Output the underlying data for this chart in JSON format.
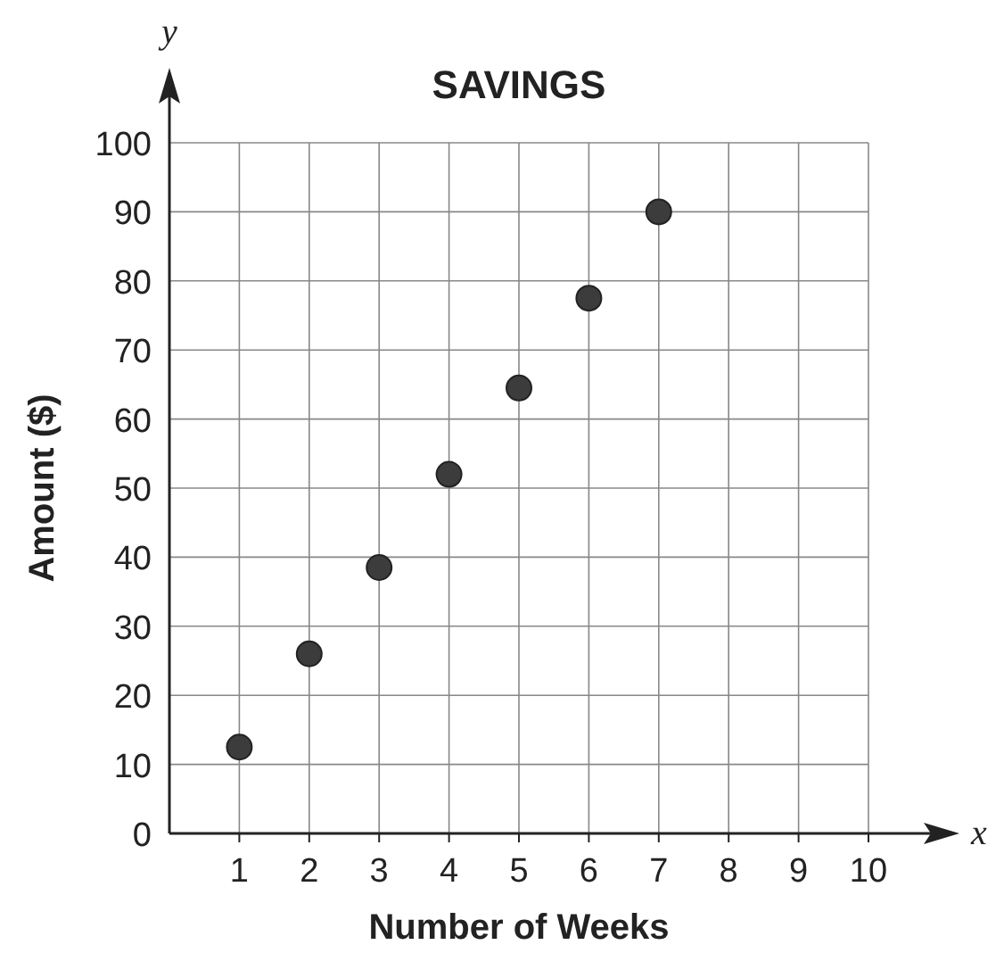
{
  "chart_data": {
    "type": "scatter",
    "title": "SAVINGS",
    "xlabel": "Number of Weeks",
    "ylabel": "Amount ($)",
    "annotations": [
      "x",
      "y"
    ],
    "x": [
      1,
      2,
      3,
      4,
      5,
      6,
      7
    ],
    "values": [
      12.5,
      26,
      38.5,
      52,
      64.5,
      77.5,
      90
    ],
    "color": "#3c3c3c",
    "marker": "circle",
    "xlim": [
      0,
      10
    ],
    "ylim": [
      0,
      100
    ],
    "xticks": [
      1,
      2,
      3,
      4,
      5,
      6,
      7,
      8,
      9,
      10
    ],
    "yticks": [
      0,
      10,
      20,
      30,
      40,
      50,
      60,
      70,
      80,
      90,
      100
    ],
    "grid": true
  }
}
